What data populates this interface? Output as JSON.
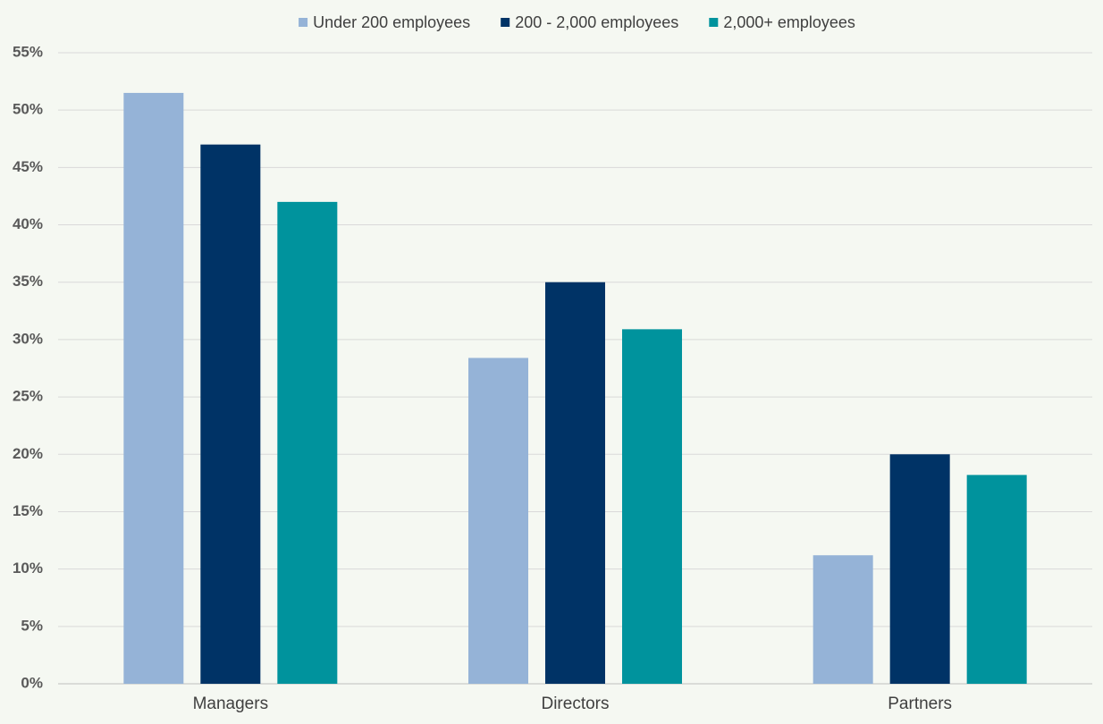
{
  "chart_data": {
    "type": "bar",
    "categories": [
      "Managers",
      "Directors",
      "Partners"
    ],
    "series": [
      {
        "name": "Under 200 employees",
        "color": "#95b3d7",
        "values": [
          51.5,
          28.4,
          11.2
        ]
      },
      {
        "name": "200 - 2,000 employees",
        "color": "#003366",
        "values": [
          47,
          35,
          20
        ]
      },
      {
        "name": "2,000+ employees",
        "color": "#00939d",
        "values": [
          42,
          30.9,
          18.2
        ]
      }
    ],
    "ylim": [
      0,
      55
    ],
    "yticks": [
      {
        "value": 0,
        "label": "0%"
      },
      {
        "value": 5,
        "label": "5%"
      },
      {
        "value": 10,
        "label": "10%"
      },
      {
        "value": 15,
        "label": "15%"
      },
      {
        "value": 20,
        "label": "20%"
      },
      {
        "value": 25,
        "label": "25%"
      },
      {
        "value": 30,
        "label": "30%"
      },
      {
        "value": 35,
        "label": "35%"
      },
      {
        "value": 40,
        "label": "40%"
      },
      {
        "value": 45,
        "label": "45%"
      },
      {
        "value": 50,
        "label": "50%"
      },
      {
        "value": 55,
        "label": "55%"
      }
    ],
    "grid": true,
    "legend": "top"
  }
}
